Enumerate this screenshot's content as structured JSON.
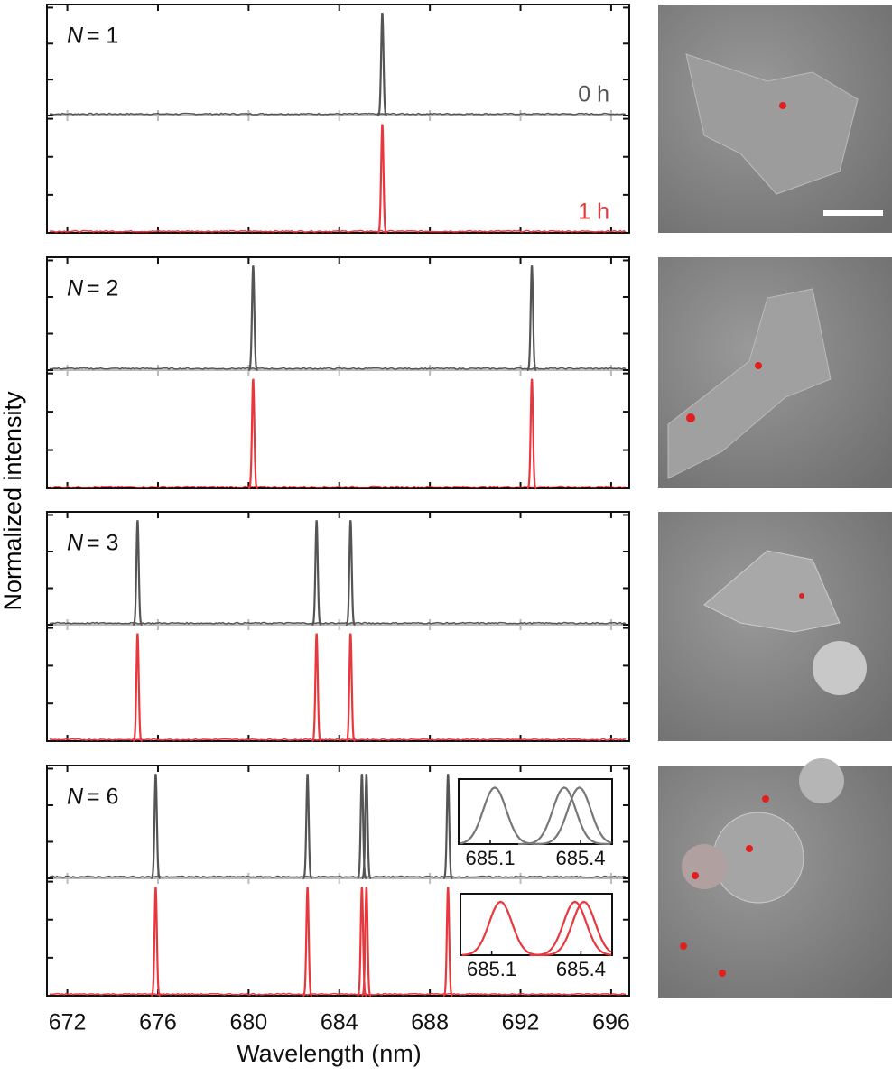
{
  "ylabel": "Normalized intensity",
  "chart_data": [
    {
      "type": "spectrum",
      "label_var": "N",
      "label_value": "= 1",
      "xlim": [
        671.1,
        696.8
      ],
      "xticks": [
        672,
        676,
        680,
        684,
        688,
        692,
        696
      ],
      "ylim": [
        0,
        1.08
      ],
      "yticks": [
        0,
        0.35,
        0.7,
        1.05
      ],
      "fwhm": 0.12,
      "series": [
        {
          "name": "0 h",
          "color": "#555555",
          "peaks": [
            685.9
          ],
          "heights": [
            1
          ]
        },
        {
          "name": "1 h",
          "color": "#e8383d",
          "peaks": [
            685.9
          ],
          "heights": [
            1
          ]
        }
      ]
    },
    {
      "type": "spectrum",
      "label_var": "N",
      "label_value": "= 2",
      "xlim": [
        671.1,
        696.8
      ],
      "xticks": [
        672,
        676,
        680,
        684,
        688,
        692,
        696
      ],
      "ylim": [
        0,
        1.08
      ],
      "yticks": [
        0,
        0.35,
        0.7,
        1.05
      ],
      "fwhm": 0.12,
      "series": [
        {
          "color": "#555555",
          "peaks": [
            680.2,
            692.5
          ],
          "heights": [
            1,
            1
          ]
        },
        {
          "color": "#e8383d",
          "peaks": [
            680.2,
            692.5
          ],
          "heights": [
            1,
            1
          ]
        }
      ]
    },
    {
      "type": "spectrum",
      "label_var": "N",
      "label_value": "= 3",
      "xlim": [
        671.1,
        696.8
      ],
      "xticks": [
        672,
        676,
        680,
        684,
        688,
        692,
        696
      ],
      "ylim": [
        0,
        1.08
      ],
      "yticks": [
        0,
        0.35,
        0.7,
        1.05
      ],
      "fwhm": 0.12,
      "series": [
        {
          "color": "#555555",
          "peaks": [
            675.1,
            683.0,
            684.5
          ],
          "heights": [
            1,
            1,
            1
          ]
        },
        {
          "color": "#e8383d",
          "peaks": [
            675.1,
            683.0,
            684.5
          ],
          "heights": [
            1,
            1,
            1
          ]
        }
      ]
    },
    {
      "type": "spectrum",
      "label_var": "N",
      "label_value": "= 6",
      "xlim": [
        671.1,
        696.8
      ],
      "xticks": [
        672,
        676,
        680,
        684,
        688,
        692,
        696
      ],
      "xlabel": "Wavelength (nm)",
      "ylim": [
        0,
        1.08
      ],
      "yticks": [
        0,
        0.35,
        0.7,
        1.05
      ],
      "fwhm": 0.12,
      "series": [
        {
          "color": "#555555",
          "peaks": [
            675.9,
            682.6,
            685.0,
            685.2,
            688.8
          ],
          "heights": [
            1,
            1,
            1,
            1,
            1
          ]
        },
        {
          "color": "#e8383d",
          "peaks": [
            675.9,
            682.6,
            685.0,
            685.2,
            688.8
          ],
          "heights": [
            1,
            1,
            1,
            1,
            1
          ]
        }
      ],
      "insets": [
        {
          "xlim": [
            684.995,
            685.505
          ],
          "xticks": [
            685.1,
            685.4
          ],
          "ylim": [
            0,
            1.15
          ],
          "fwhm": 0.09,
          "color": "#777777",
          "peaks": [
            685.115,
            685.346,
            685.396
          ],
          "heights": [
            1,
            1,
            1
          ]
        },
        {
          "xlim": [
            684.995,
            685.505
          ],
          "xticks": [
            685.1,
            685.4
          ],
          "ylim": [
            0,
            1.15
          ],
          "fwhm": 0.09,
          "color": "#e8383d",
          "peaks": [
            685.13,
            685.38,
            685.41
          ],
          "heights": [
            1,
            1,
            1
          ]
        }
      ]
    }
  ]
}
